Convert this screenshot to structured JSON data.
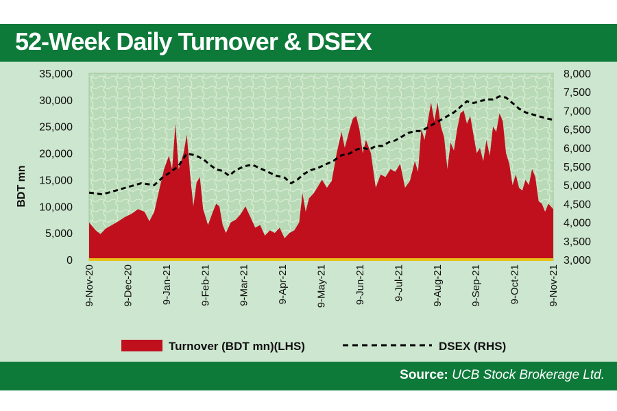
{
  "title": "52-Week Daily Turnover & DSEX",
  "source": {
    "label": "Source:",
    "text": " UCB Stock Brokerage Ltd."
  },
  "colors": {
    "title_bar": "#0e7a3a",
    "panel": "#cde6cf",
    "plot_bg": "#b9dab6",
    "turnover": "#c0101e",
    "dsex": "#000000",
    "baseline": "#e8c21a"
  },
  "chart_data": {
    "type": "area",
    "y_left": {
      "label": "BDT mn",
      "range": [
        0,
        35000
      ],
      "ticks": [
        "0",
        "5,000",
        "10,000",
        "15,000",
        "20,000",
        "25,000",
        "30,000",
        "35,000"
      ]
    },
    "y_right": {
      "range": [
        3000,
        8000
      ],
      "ticks": [
        "3,000",
        "3,500",
        "4,000",
        "4,500",
        "5,000",
        "5,500",
        "6,000",
        "6,500",
        "7,000",
        "7,500",
        "8,000"
      ]
    },
    "x_ticks": [
      "9-Nov-20",
      "9-Dec-20",
      "9-Jan-21",
      "9-Feb-21",
      "9-Mar-21",
      "9-Apr-21",
      "9-May-21",
      "9-Jun-21",
      "9-Jul-21",
      "9-Aug-21",
      "9-Sep-21",
      "9-Oct-21",
      "9-Nov-21"
    ],
    "legend": {
      "placement": "bottom",
      "turnover": "Turnover (BDT mn)(LHS)",
      "dsex": "DSEX (RHS)"
    },
    "series": [
      {
        "name": "Turnover (BDT mn)(LHS)",
        "axis": "left",
        "type": "area",
        "points": [
          [
            0,
            7000
          ],
          [
            0.4,
            5500
          ],
          [
            0.7,
            4800
          ],
          [
            1.0,
            5800
          ],
          [
            1.4,
            6500
          ],
          [
            1.8,
            7200
          ],
          [
            2.2,
            8000
          ],
          [
            2.6,
            8600
          ],
          [
            3.0,
            9500
          ],
          [
            3.4,
            9000
          ],
          [
            3.7,
            7200
          ],
          [
            4.0,
            9000
          ],
          [
            4.3,
            13000
          ],
          [
            4.6,
            17000
          ],
          [
            4.9,
            19500
          ],
          [
            5.1,
            17000
          ],
          [
            5.3,
            25500
          ],
          [
            5.5,
            17000
          ],
          [
            5.8,
            20000
          ],
          [
            6.0,
            23500
          ],
          [
            6.2,
            16000
          ],
          [
            6.4,
            10000
          ],
          [
            6.6,
            14500
          ],
          [
            6.8,
            15500
          ],
          [
            7.0,
            9500
          ],
          [
            7.3,
            6500
          ],
          [
            7.6,
            9000
          ],
          [
            7.8,
            10500
          ],
          [
            8.0,
            10000
          ],
          [
            8.2,
            6500
          ],
          [
            8.4,
            5000
          ],
          [
            8.7,
            7000
          ],
          [
            9.0,
            7500
          ],
          [
            9.3,
            8500
          ],
          [
            9.6,
            10000
          ],
          [
            9.9,
            8000
          ],
          [
            10.2,
            6000
          ],
          [
            10.5,
            6500
          ],
          [
            10.8,
            4500
          ],
          [
            11.1,
            5500
          ],
          [
            11.4,
            5000
          ],
          [
            11.7,
            6000
          ],
          [
            12.0,
            4000
          ],
          [
            12.3,
            5000
          ],
          [
            12.6,
            5500
          ],
          [
            12.9,
            7000
          ],
          [
            13.1,
            12500
          ],
          [
            13.3,
            9000
          ],
          [
            13.5,
            11500
          ],
          [
            13.8,
            12500
          ],
          [
            14.0,
            13500
          ],
          [
            14.3,
            15000
          ],
          [
            14.6,
            13500
          ],
          [
            14.9,
            14800
          ],
          [
            15.2,
            20000
          ],
          [
            15.5,
            24000
          ],
          [
            15.7,
            21000
          ],
          [
            16.0,
            24500
          ],
          [
            16.2,
            26500
          ],
          [
            16.4,
            27000
          ],
          [
            16.6,
            24500
          ],
          [
            16.8,
            20000
          ],
          [
            17.0,
            22500
          ],
          [
            17.3,
            20000
          ],
          [
            17.6,
            13500
          ],
          [
            17.9,
            16000
          ],
          [
            18.2,
            15500
          ],
          [
            18.5,
            17000
          ],
          [
            18.8,
            16500
          ],
          [
            19.1,
            18000
          ],
          [
            19.4,
            13500
          ],
          [
            19.7,
            14800
          ],
          [
            20.0,
            18500
          ],
          [
            20.2,
            16500
          ],
          [
            20.4,
            24500
          ],
          [
            20.6,
            22500
          ],
          [
            20.8,
            26000
          ],
          [
            21.0,
            29500
          ],
          [
            21.2,
            26000
          ],
          [
            21.4,
            29500
          ],
          [
            21.6,
            25000
          ],
          [
            21.8,
            23000
          ],
          [
            22.0,
            17000
          ],
          [
            22.2,
            22000
          ],
          [
            22.4,
            20500
          ],
          [
            22.6,
            24500
          ],
          [
            22.8,
            27500
          ],
          [
            23.0,
            28000
          ],
          [
            23.2,
            25500
          ],
          [
            23.4,
            27000
          ],
          [
            23.6,
            23500
          ],
          [
            23.8,
            20000
          ],
          [
            24.0,
            21000
          ],
          [
            24.2,
            18500
          ],
          [
            24.4,
            22500
          ],
          [
            24.6,
            19500
          ],
          [
            24.8,
            25000
          ],
          [
            25.0,
            24000
          ],
          [
            25.2,
            27500
          ],
          [
            25.4,
            26000
          ],
          [
            25.6,
            20000
          ],
          [
            25.8,
            18000
          ],
          [
            26.0,
            14000
          ],
          [
            26.2,
            16000
          ],
          [
            26.4,
            13500
          ],
          [
            26.6,
            13000
          ],
          [
            26.8,
            15000
          ],
          [
            27.0,
            14000
          ],
          [
            27.2,
            17000
          ],
          [
            27.4,
            15500
          ],
          [
            27.6,
            11000
          ],
          [
            27.8,
            10500
          ],
          [
            28.0,
            9000
          ],
          [
            28.2,
            10500
          ],
          [
            28.5,
            9500
          ]
        ]
      },
      {
        "name": "DSEX (RHS)",
        "axis": "right",
        "type": "line",
        "points": [
          [
            0,
            4800
          ],
          [
            0.8,
            4750
          ],
          [
            1.6,
            4850
          ],
          [
            2.4,
            4950
          ],
          [
            3.2,
            5050
          ],
          [
            4.0,
            5000
          ],
          [
            4.5,
            5200
          ],
          [
            5.0,
            5350
          ],
          [
            5.5,
            5520
          ],
          [
            6.0,
            5850
          ],
          [
            6.5,
            5800
          ],
          [
            7.0,
            5700
          ],
          [
            7.4,
            5550
          ],
          [
            7.8,
            5420
          ],
          [
            8.2,
            5380
          ],
          [
            8.6,
            5250
          ],
          [
            9.0,
            5400
          ],
          [
            9.5,
            5500
          ],
          [
            10.0,
            5550
          ],
          [
            10.5,
            5450
          ],
          [
            11.0,
            5350
          ],
          [
            11.5,
            5250
          ],
          [
            12.0,
            5200
          ],
          [
            12.4,
            5050
          ],
          [
            12.8,
            5150
          ],
          [
            13.2,
            5300
          ],
          [
            13.6,
            5400
          ],
          [
            14.0,
            5450
          ],
          [
            14.5,
            5550
          ],
          [
            15.0,
            5650
          ],
          [
            15.5,
            5800
          ],
          [
            16.0,
            5850
          ],
          [
            16.4,
            5950
          ],
          [
            16.8,
            6000
          ],
          [
            17.2,
            5950
          ],
          [
            17.6,
            6050
          ],
          [
            18.0,
            6050
          ],
          [
            18.4,
            6150
          ],
          [
            18.8,
            6200
          ],
          [
            19.2,
            6300
          ],
          [
            19.6,
            6400
          ],
          [
            20.0,
            6450
          ],
          [
            20.4,
            6450
          ],
          [
            20.8,
            6550
          ],
          [
            21.2,
            6650
          ],
          [
            21.6,
            6750
          ],
          [
            22.0,
            6850
          ],
          [
            22.4,
            6950
          ],
          [
            22.8,
            7100
          ],
          [
            23.2,
            7250
          ],
          [
            23.6,
            7200
          ],
          [
            24.0,
            7250
          ],
          [
            24.4,
            7300
          ],
          [
            24.8,
            7300
          ],
          [
            25.2,
            7380
          ],
          [
            25.6,
            7350
          ],
          [
            26.0,
            7200
          ],
          [
            26.4,
            7050
          ],
          [
            26.8,
            6950
          ],
          [
            27.2,
            6900
          ],
          [
            27.6,
            6850
          ],
          [
            28.0,
            6800
          ],
          [
            28.5,
            6750
          ]
        ]
      }
    ]
  }
}
